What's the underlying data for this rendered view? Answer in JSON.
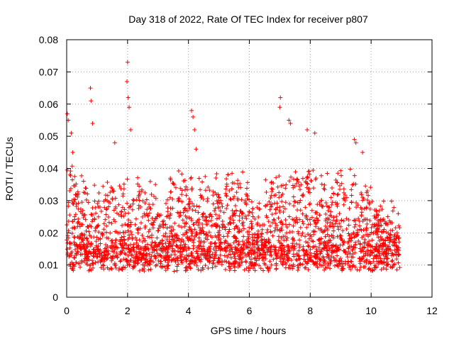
{
  "chart_data": {
    "type": "scatter",
    "title": "Day 318 of 2022, Rate Of TEC Index for receiver p807",
    "xlabel": "GPS time / hours",
    "ylabel": "ROTI / TECUs",
    "xlim": [
      0,
      12
    ],
    "ylim": [
      0,
      0.08
    ],
    "xticks": [
      0,
      2,
      4,
      6,
      8,
      10,
      12
    ],
    "xtick_labels": [
      "0",
      "2",
      "4",
      "6",
      "8",
      "10",
      "12"
    ],
    "yticks": [
      0,
      0.01,
      0.02,
      0.03,
      0.04,
      0.05,
      0.06,
      0.07,
      0.08
    ],
    "ytick_labels": [
      "0",
      "0.01",
      "0.02",
      "0.03",
      "0.04",
      "0.05",
      "0.06",
      "0.07",
      "0.08"
    ],
    "grid": true,
    "marker": "+",
    "color": "#ff0000",
    "series": [
      {
        "name": "p807",
        "x_range": [
          0,
          10.95
        ],
        "baseline": 0.012,
        "notable_points": [
          {
            "x": 0.02,
            "y": 0.057
          },
          {
            "x": 0.05,
            "y": 0.055
          },
          {
            "x": 0.15,
            "y": 0.051
          },
          {
            "x": 0.2,
            "y": 0.045
          },
          {
            "x": 0.78,
            "y": 0.065
          },
          {
            "x": 0.8,
            "y": 0.061
          },
          {
            "x": 0.85,
            "y": 0.054
          },
          {
            "x": 1.58,
            "y": 0.048
          },
          {
            "x": 2.0,
            "y": 0.073
          },
          {
            "x": 1.98,
            "y": 0.067
          },
          {
            "x": 2.02,
            "y": 0.062
          },
          {
            "x": 2.05,
            "y": 0.059
          },
          {
            "x": 2.1,
            "y": 0.052
          },
          {
            "x": 4.1,
            "y": 0.058
          },
          {
            "x": 4.15,
            "y": 0.056
          },
          {
            "x": 4.2,
            "y": 0.052
          },
          {
            "x": 4.25,
            "y": 0.046
          },
          {
            "x": 7.02,
            "y": 0.062
          },
          {
            "x": 7.0,
            "y": 0.059
          },
          {
            "x": 7.3,
            "y": 0.055
          },
          {
            "x": 7.35,
            "y": 0.054
          },
          {
            "x": 7.9,
            "y": 0.052
          },
          {
            "x": 8.15,
            "y": 0.051
          },
          {
            "x": 9.45,
            "y": 0.049
          },
          {
            "x": 9.5,
            "y": 0.048
          },
          {
            "x": 9.72,
            "y": 0.045
          }
        ]
      }
    ]
  }
}
